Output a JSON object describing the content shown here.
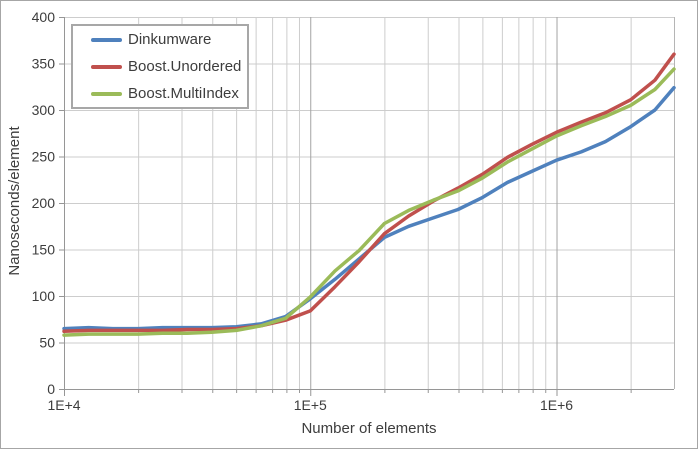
{
  "chart_data": {
    "type": "line",
    "xlabel": "Number of elements",
    "ylabel": "Nanoseconds/element",
    "x_scale": "log",
    "xlim": [
      10000,
      3000000
    ],
    "ylim": [
      0,
      400
    ],
    "y_tick_interval": 50,
    "y_tick_labels": [
      "0",
      "50",
      "100",
      "150",
      "200",
      "250",
      "300",
      "350",
      "400"
    ],
    "x_major_ticks": [
      {
        "value": 10000,
        "label": "1E+4"
      },
      {
        "value": 100000,
        "label": "1E+5"
      },
      {
        "value": 1000000,
        "label": "1E+6"
      }
    ],
    "grid": true,
    "legend_position": "top-left",
    "x": [
      10000,
      12600,
      15800,
      20000,
      25100,
      31600,
      39800,
      50100,
      63100,
      79400,
      100000,
      126000,
      158000,
      200000,
      251000,
      316000,
      398000,
      501000,
      631000,
      794000,
      1000000,
      1260000,
      1580000,
      2000000,
      2510000,
      3000000
    ],
    "series": [
      {
        "name": "Dinkumware",
        "color": "#4f81bd",
        "values": [
          65,
          66,
          65,
          65,
          66,
          66,
          66,
          67,
          70,
          78,
          97,
          118,
          140,
          163,
          175,
          184,
          193,
          206,
          222,
          234,
          246,
          255,
          266,
          282,
          300,
          324
        ]
      },
      {
        "name": "Boost.Unordered",
        "color": "#c0504d",
        "values": [
          62,
          63,
          63,
          63,
          63,
          64,
          64,
          65,
          68,
          74,
          84,
          110,
          137,
          167,
          186,
          202,
          216,
          231,
          249,
          263,
          276,
          287,
          297,
          311,
          332,
          360
        ]
      },
      {
        "name": "Boost.MultiIndex",
        "color": "#9bbb59",
        "values": [
          58,
          59,
          59,
          59,
          60,
          60,
          61,
          63,
          68,
          76,
          99,
          127,
          149,
          178,
          192,
          203,
          213,
          227,
          244,
          258,
          272,
          283,
          293,
          305,
          322,
          344
        ]
      }
    ],
    "style": {
      "minor_grid_color": "#cdcdcd",
      "major_grid_color": "#a3a3a3",
      "axis_color": "#969696",
      "plot_edge_color": "#b5b5b5",
      "text_color": "#3d3d3d",
      "line_width": 3.5
    }
  }
}
